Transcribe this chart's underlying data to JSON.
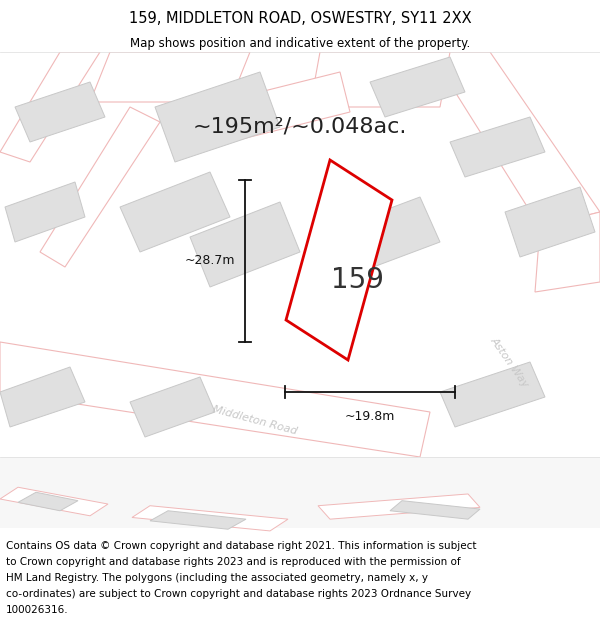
{
  "title": "159, MIDDLETON ROAD, OSWESTRY, SY11 2XX",
  "subtitle": "Map shows position and indicative extent of the property.",
  "area_label": "~195m²/~0.048ac.",
  "property_number": "159",
  "width_label": "~19.8m",
  "height_label": "~28.7m",
  "footer_line1": "Contains OS data © Crown copyright and database right 2021. This information is subject",
  "footer_line2": "to Crown copyright and database rights 2023 and is reproduced with the permission of",
  "footer_line3": "HM Land Registry. The polygons (including the associated geometry, namely x, y",
  "footer_line4": "co-ordinates) are subject to Crown copyright and database rights 2023 Ordnance Survey",
  "footer_line5": "100026316.",
  "map_bg": "#f7f7f7",
  "road_fill": "#ffffff",
  "road_edge": "#f0b8b8",
  "building_fill": "#e0e0e0",
  "building_edge": "#c8c8c8",
  "property_fill": "#ffffff",
  "property_edge": "#dd0000",
  "road_label_color": "#c8c8c8",
  "dim_color": "#111111",
  "title_fontsize": 10.5,
  "subtitle_fontsize": 8.5,
  "area_fontsize": 16,
  "number_fontsize": 20,
  "dim_fontsize": 9,
  "road_label_fontsize": 8,
  "footer_fontsize": 7.5
}
